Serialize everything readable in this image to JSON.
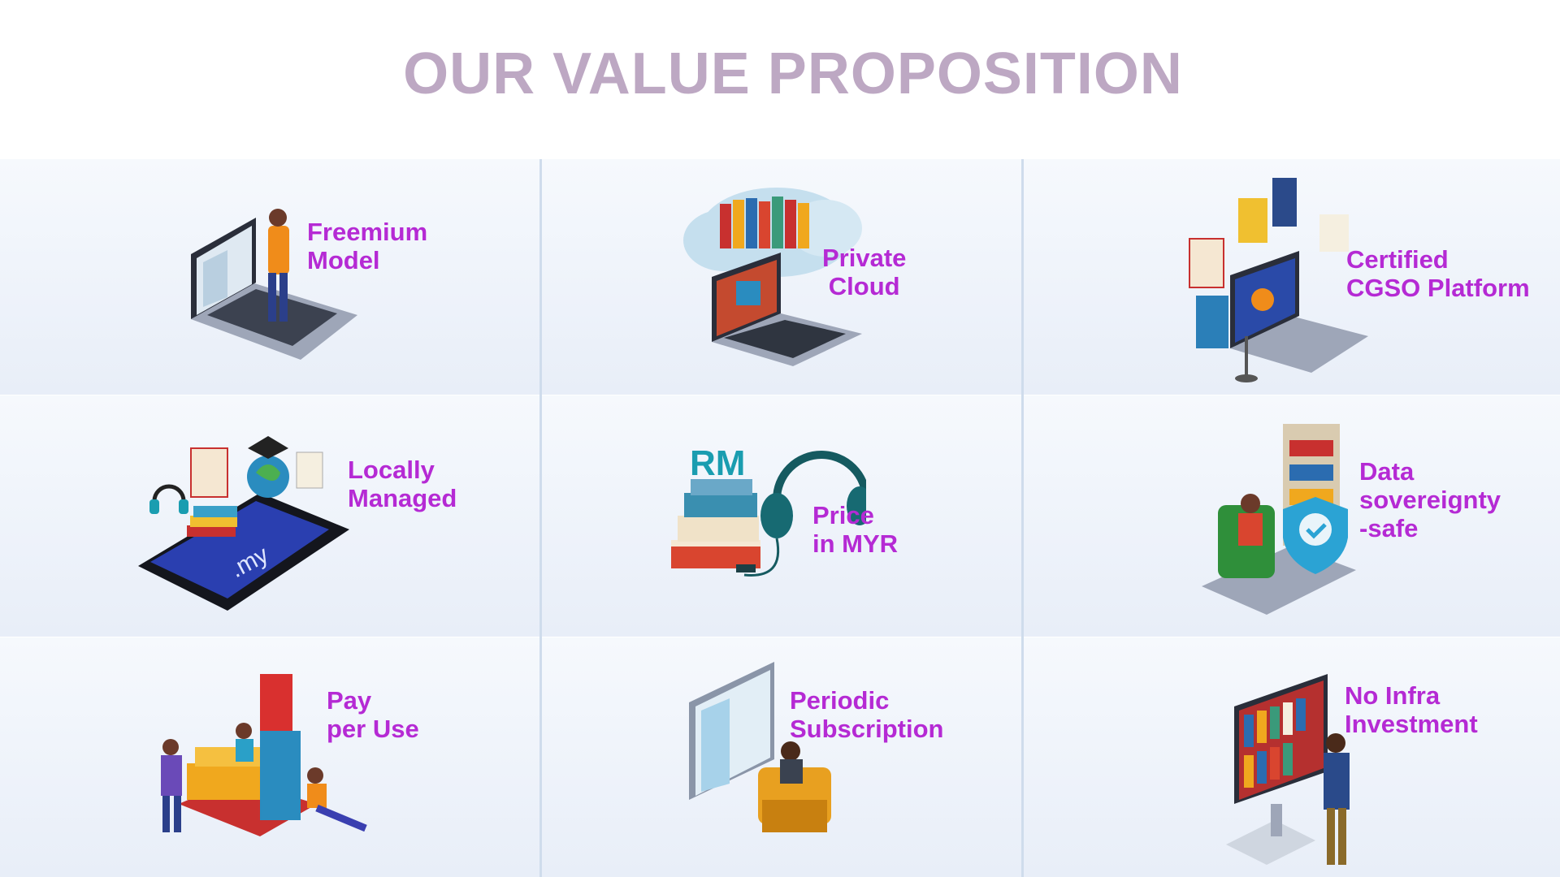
{
  "title": "OUR VALUE PROPOSITION",
  "cells": [
    {
      "label": "Freemium\nModel",
      "icon": "laptop-reader-icon"
    },
    {
      "label": "Private\nCloud",
      "icon": "cloud-library-icon"
    },
    {
      "label": "Certified\nCGSO Platform",
      "icon": "certified-laptop-icon"
    },
    {
      "label": "Locally\nManaged",
      "icon": "tablet-my-icon"
    },
    {
      "label": "Price\nin MYR",
      "icon": "headphones-books-icon",
      "badge": "RM"
    },
    {
      "label": "Data\nsovereignty\n-safe",
      "icon": "shield-reader-icon"
    },
    {
      "label": "Pay\nper Use",
      "icon": "books-readers-icon"
    },
    {
      "label": "Periodic\nSubscription",
      "icon": "armchair-book-icon"
    },
    {
      "label": "No Infra\nInvestment",
      "icon": "monitor-bookshelf-icon"
    }
  ],
  "colors": {
    "title": "#bda8c3",
    "label": "#b52ad4",
    "accent": "#1a9db0"
  }
}
